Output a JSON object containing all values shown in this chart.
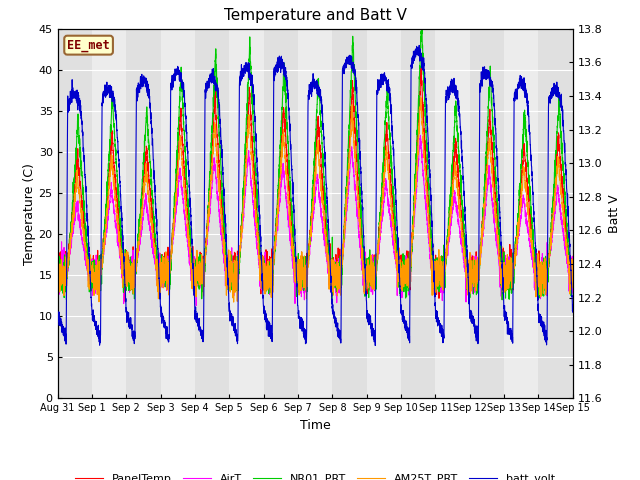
{
  "title": "Temperature and Batt V",
  "xlabel": "Time",
  "ylabel_left": "Temperature (C)",
  "ylabel_right": "Batt V",
  "station_label": "EE_met",
  "ylim_left": [
    0,
    45
  ],
  "ylim_right": [
    11.6,
    13.8
  ],
  "yticks_left": [
    0,
    5,
    10,
    15,
    20,
    25,
    30,
    35,
    40,
    45
  ],
  "yticks_right": [
    11.6,
    11.8,
    12.0,
    12.2,
    12.4,
    12.6,
    12.8,
    13.0,
    13.2,
    13.4,
    13.6,
    13.8
  ],
  "background_color": "#ffffff",
  "band_colors": [
    "#e0e0e0",
    "#ececec"
  ],
  "colors": {
    "PanelTemp": "#ff0000",
    "AirT": "#ff00ff",
    "NR01_PRT": "#00cc00",
    "AM25T_PRT": "#ff9900",
    "batt_volt": "#0000cc"
  },
  "batt_min": 11.95,
  "batt_max": 13.62,
  "temp_night": 15.0,
  "temp_day_panel": 35.0,
  "temp_day_air": 28.0,
  "temp_day_nr01": 40.0,
  "temp_day_am25t": 32.0
}
